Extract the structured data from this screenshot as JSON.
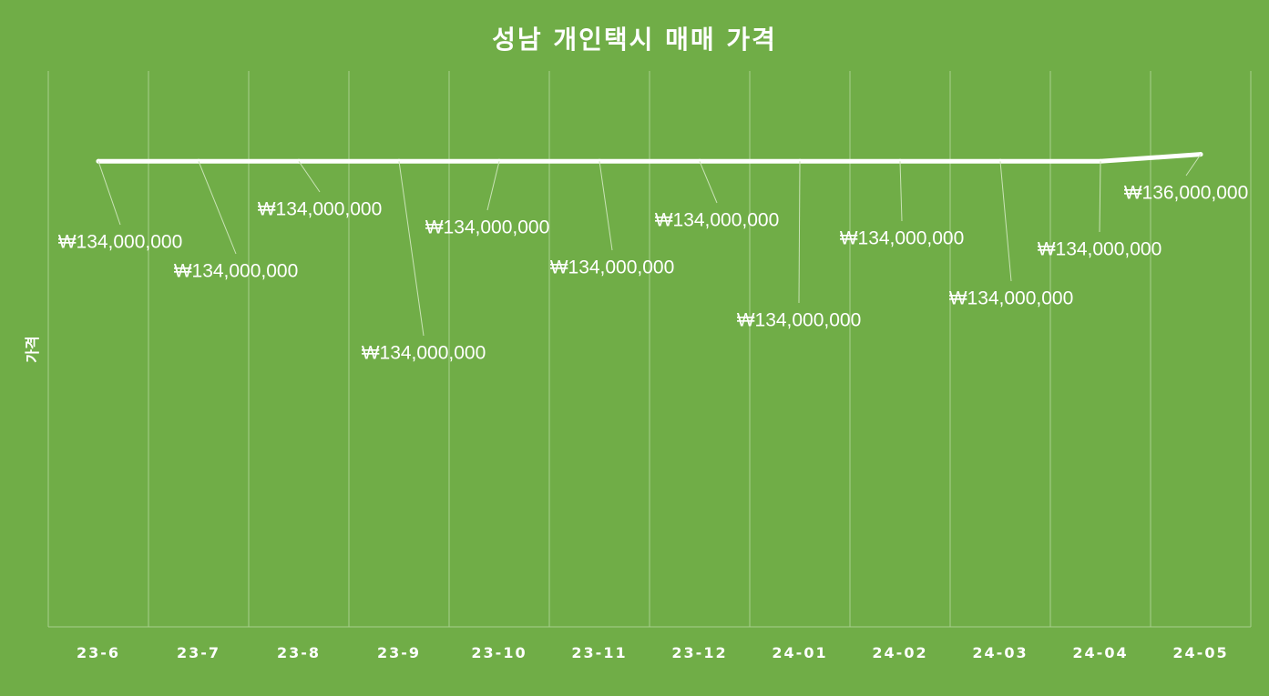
{
  "chart_data": {
    "type": "line",
    "title": "성남 개인택시 매매 가격",
    "xlabel": "",
    "ylabel": "가격",
    "categories": [
      "23-6",
      "23-7",
      "23-8",
      "23-9",
      "23-10",
      "23-11",
      "23-12",
      "24-01",
      "24-02",
      "24-03",
      "24-04",
      "24-05"
    ],
    "series": [
      {
        "values": [
          134000000,
          134000000,
          134000000,
          134000000,
          134000000,
          134000000,
          134000000,
          134000000,
          134000000,
          134000000,
          134000000,
          136000000
        ]
      }
    ],
    "data_labels": [
      "₩134,000,000",
      "₩134,000,000",
      "₩134,000,000",
      "₩134,000,000",
      "₩134,000,000",
      "₩134,000,000",
      "₩134,000,000",
      "₩134,000,000",
      "₩134,000,000",
      "₩134,000,000",
      "₩134,000,000",
      "₩136,000,000"
    ],
    "ylim": [
      0,
      160000000
    ],
    "grid": "vertical",
    "legend": "none",
    "colors": {
      "background": "#70ad47",
      "line": "#ffffff",
      "gridline": "#a9cf8e"
    }
  }
}
